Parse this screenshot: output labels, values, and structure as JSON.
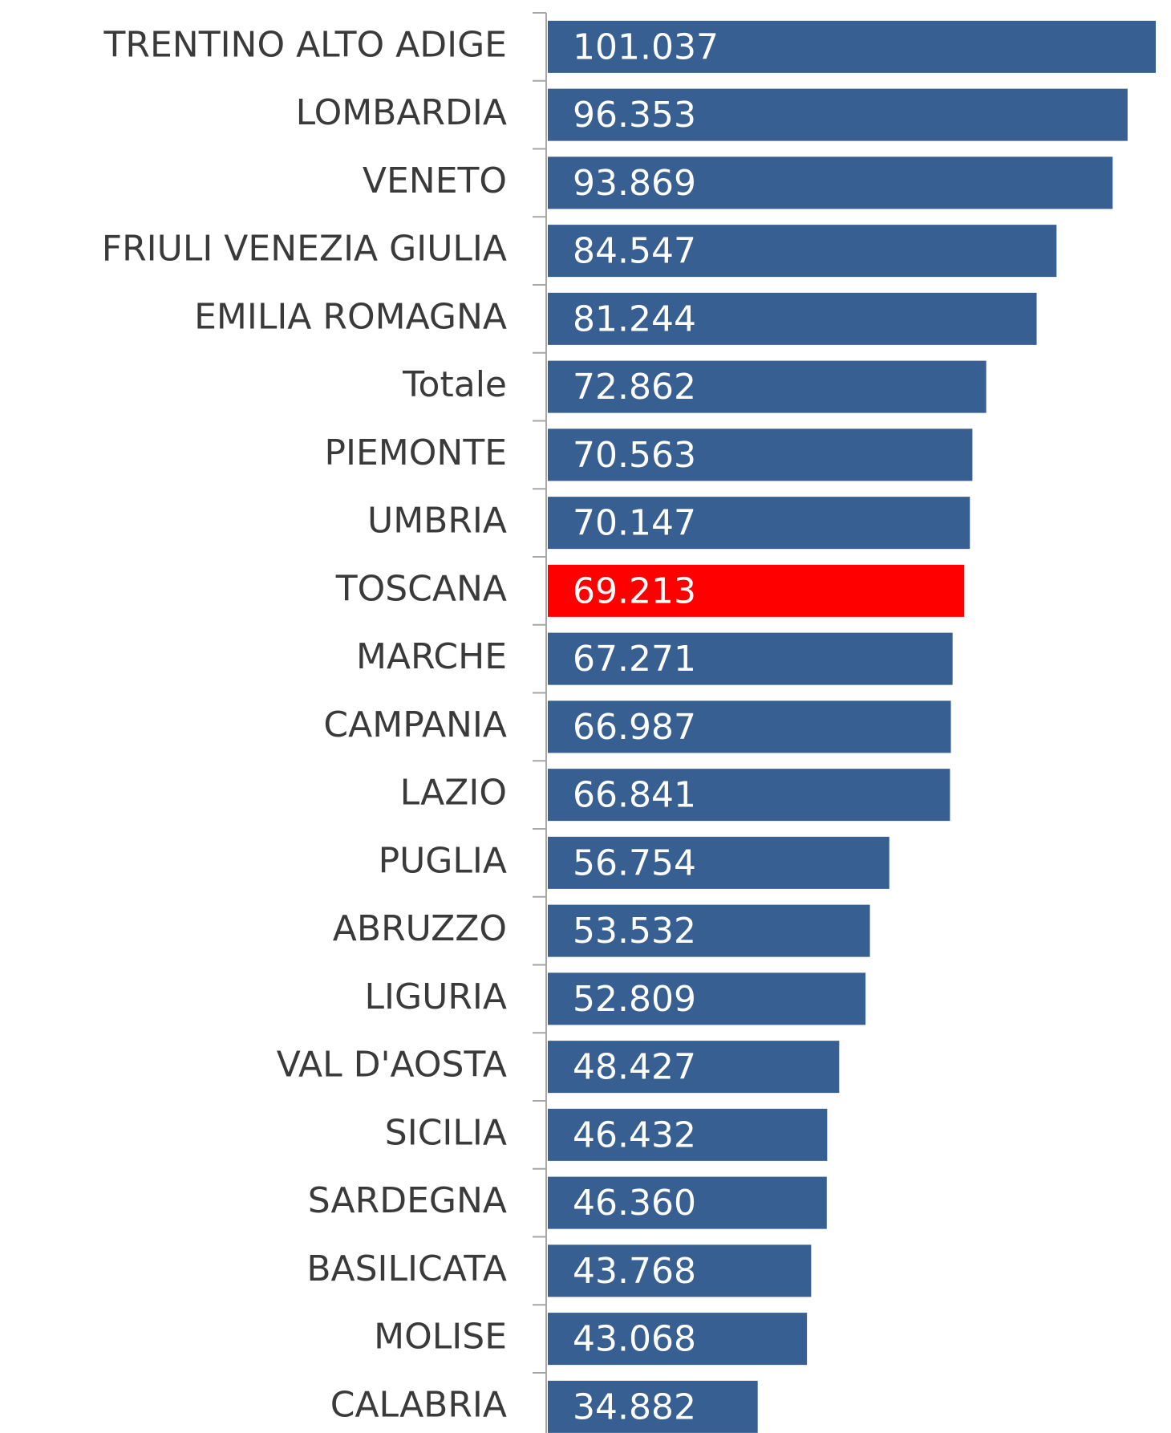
{
  "chart_data": {
    "type": "barh",
    "categories": [
      "TRENTINO ALTO ADIGE",
      "LOMBARDIA",
      "VENETO",
      "FRIULI VENEZIA GIULIA",
      "EMILIA ROMAGNA",
      "Totale",
      "PIEMONTE",
      "UMBRIA",
      "TOSCANA",
      "MARCHE",
      "CAMPANIA",
      "LAZIO",
      "PUGLIA",
      "ABRUZZO",
      "LIGURIA",
      "VAL D'AOSTA",
      "SICILIA",
      "SARDEGNA",
      "BASILICATA",
      "MOLISE",
      "CALABRIA"
    ],
    "values": [
      101037,
      96353,
      93869,
      84547,
      81244,
      72862,
      70563,
      70147,
      69213,
      67271,
      66987,
      66841,
      56754,
      53532,
      52809,
      48427,
      46432,
      46360,
      43768,
      43068,
      34882
    ],
    "value_labels": [
      "101.037",
      "96.353",
      "93.869",
      "84.547",
      "81.244",
      "72.862",
      "70.563",
      "70.147",
      "69.213",
      "67.271",
      "66.987",
      "66.841",
      "56.754",
      "53.532",
      "52.809",
      "48.427",
      "46.432",
      "46.360",
      "43.768",
      "43.068",
      "34.882"
    ],
    "colors": [
      "#375f92",
      "#375f92",
      "#375f92",
      "#375f92",
      "#375f92",
      "#375f92",
      "#375f92",
      "#375f92",
      "#ff0000",
      "#375f92",
      "#375f92",
      "#375f92",
      "#375f92",
      "#375f92",
      "#375f92",
      "#375f92",
      "#375f92",
      "#375f92",
      "#375f92",
      "#375f92",
      "#375f92"
    ]
  }
}
